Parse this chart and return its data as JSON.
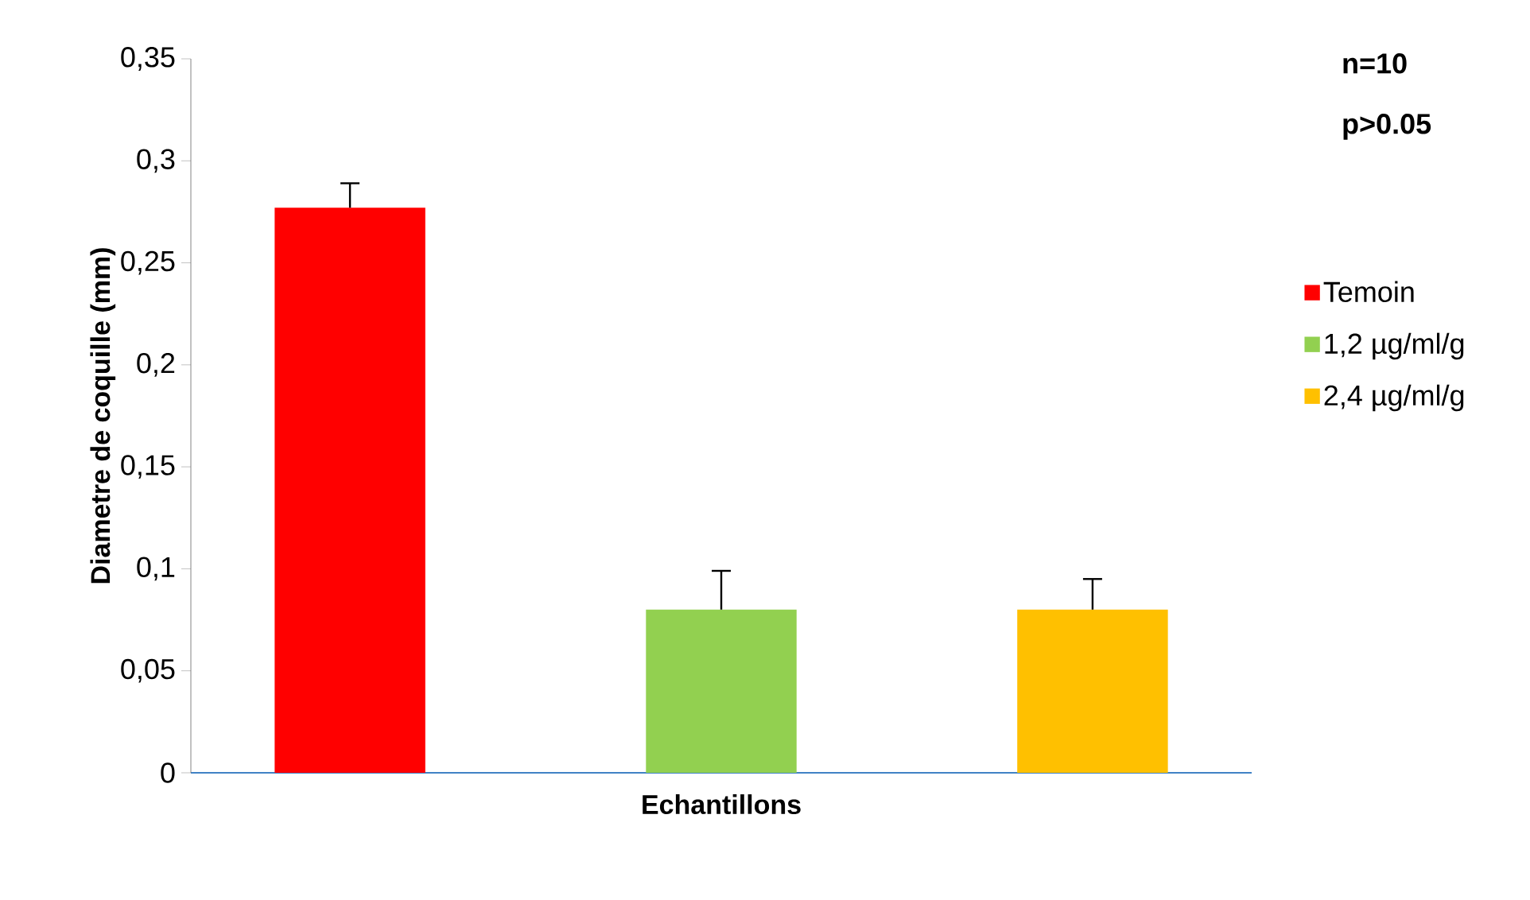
{
  "chart_data": {
    "type": "bar",
    "ylabel": "Diametre de coquille (mm)",
    "xlabel": "Echantillons",
    "categories": [
      null
    ],
    "series": [
      {
        "name": "Temoin",
        "color": "#ff0000",
        "values": [
          0.277
        ],
        "errors": [
          [
            0.277,
            0.289
          ]
        ]
      },
      {
        "name": "1,2 µg/ml/g",
        "color": "#92d050",
        "values": [
          0.08
        ],
        "errors": [
          [
            0.08,
            0.099
          ]
        ]
      },
      {
        "name": "2,4 µg/ml/g",
        "color": "#ffc000",
        "values": [
          0.08
        ],
        "errors": [
          [
            0.08,
            0.095
          ]
        ]
      }
    ],
    "ylim": [
      0,
      0.35
    ],
    "yticks": [
      {
        "value": 0,
        "label": "0"
      },
      {
        "value": 0.05,
        "label": "0,05"
      },
      {
        "value": 0.1,
        "label": "0,1"
      },
      {
        "value": 0.15,
        "label": "0,15"
      },
      {
        "value": 0.2,
        "label": "0,2"
      },
      {
        "value": 0.25,
        "label": "0,25"
      },
      {
        "value": 0.3,
        "label": "0,3"
      },
      {
        "value": 0.35,
        "label": "0,35"
      }
    ],
    "annotations": [
      "n=10",
      "p>0.05"
    ],
    "legend": "right",
    "grid": false
  }
}
